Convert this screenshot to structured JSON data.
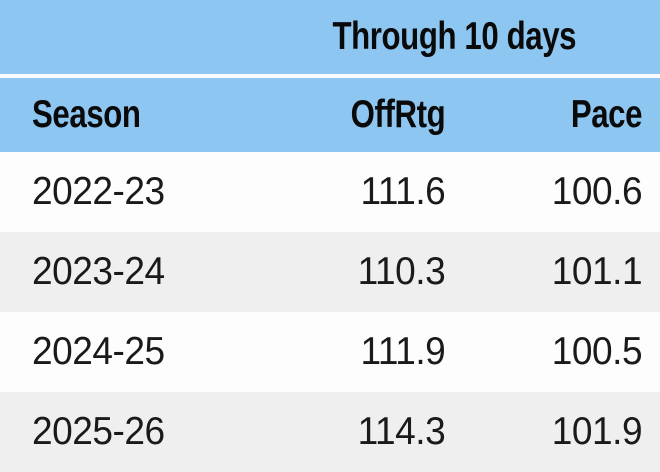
{
  "table": {
    "spanner": "Through 10 days",
    "columns": [
      "Season",
      "OffRtg",
      "Pace"
    ],
    "rows": [
      {
        "cells": [
          "2022-23",
          "111.6",
          "100.6"
        ]
      },
      {
        "cells": [
          "2023-24",
          "110.3",
          "101.1"
        ]
      },
      {
        "cells": [
          "2024-25",
          "111.9",
          "100.5"
        ]
      },
      {
        "cells": [
          "2025-26",
          "114.3",
          "101.9"
        ]
      }
    ]
  },
  "chart_data": {
    "type": "table",
    "title": "Through 10 days",
    "columns": [
      "Season",
      "OffRtg",
      "Pace"
    ],
    "rows": [
      [
        "2022-23",
        111.6,
        100.6
      ],
      [
        "2023-24",
        110.3,
        101.1
      ],
      [
        "2024-25",
        111.9,
        100.5
      ],
      [
        "2025-26",
        114.3,
        101.9
      ]
    ],
    "layout_hints": {
      "numeric_columns_right_aligned": true,
      "alternating_row_stripes": true
    }
  },
  "colors": {
    "header_blue": "#8ec6f2",
    "divider_white": "#f7fbfe",
    "row_white": "#fdfdfd",
    "row_gray": "#efefef",
    "header_text": "#0a0a0a",
    "data_text": "#1a1a1a"
  }
}
